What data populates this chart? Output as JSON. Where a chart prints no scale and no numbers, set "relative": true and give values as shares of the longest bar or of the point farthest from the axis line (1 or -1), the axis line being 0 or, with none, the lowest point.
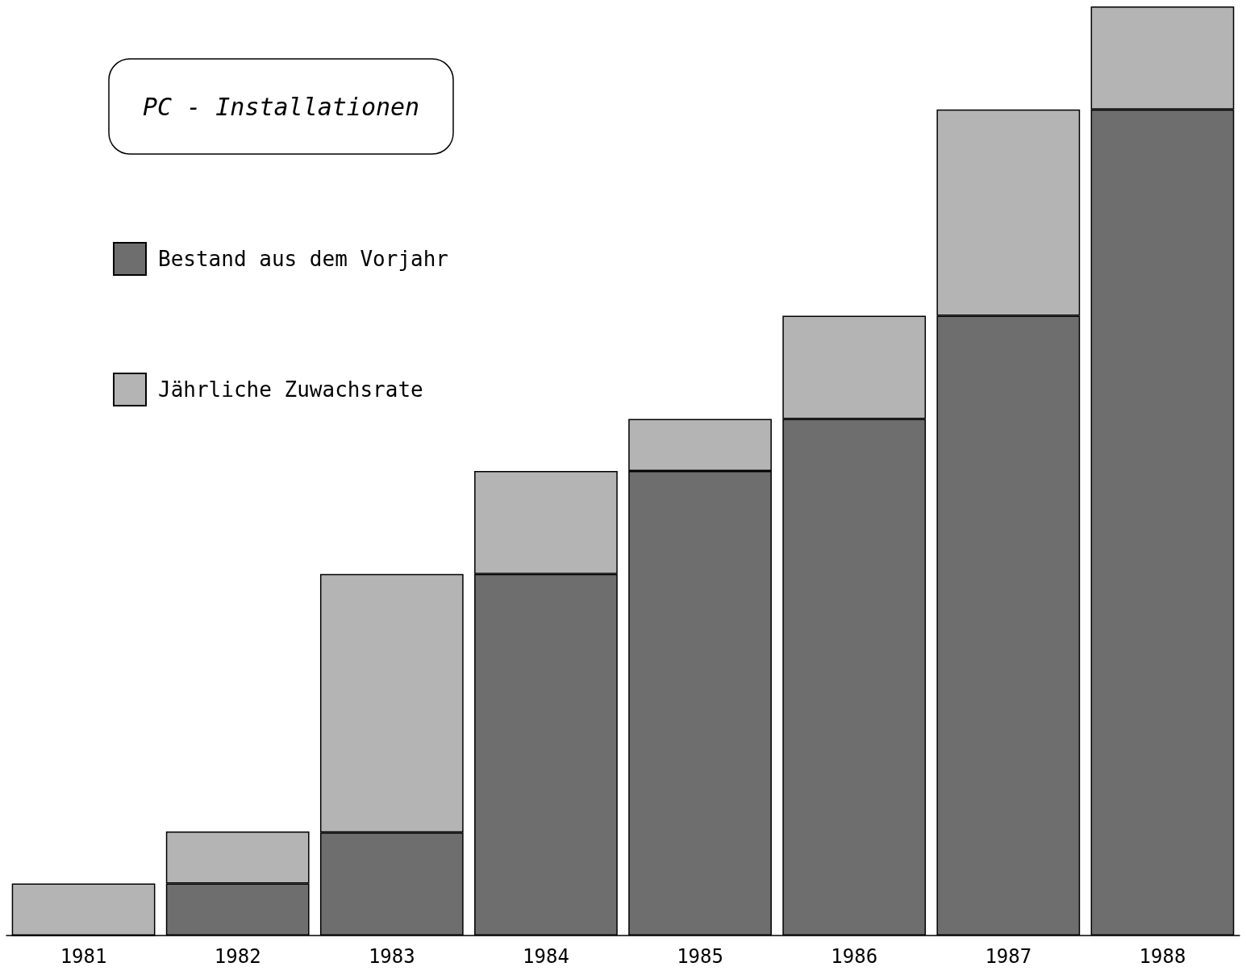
{
  "chart_data": {
    "type": "bar",
    "title": "PC - Installationen",
    "relative": true,
    "stacked": true,
    "legend": "top left",
    "categories": [
      "1981",
      "1982",
      "1983",
      "1984",
      "1985",
      "1986",
      "1987",
      "1988"
    ],
    "series": [
      {
        "name": "Bestand aus dem Vorjahr",
        "color": "#6e6e6e",
        "values": [
          0,
          0.056,
          0.111,
          0.389,
          0.5,
          0.556,
          0.667,
          0.889
        ]
      },
      {
        "name": "Jährliche Zuwachsrate",
        "color": "#b4b4b4",
        "values": [
          0.056,
          0.056,
          0.278,
          0.111,
          0.056,
          0.111,
          0.222,
          0.111
        ]
      }
    ]
  }
}
